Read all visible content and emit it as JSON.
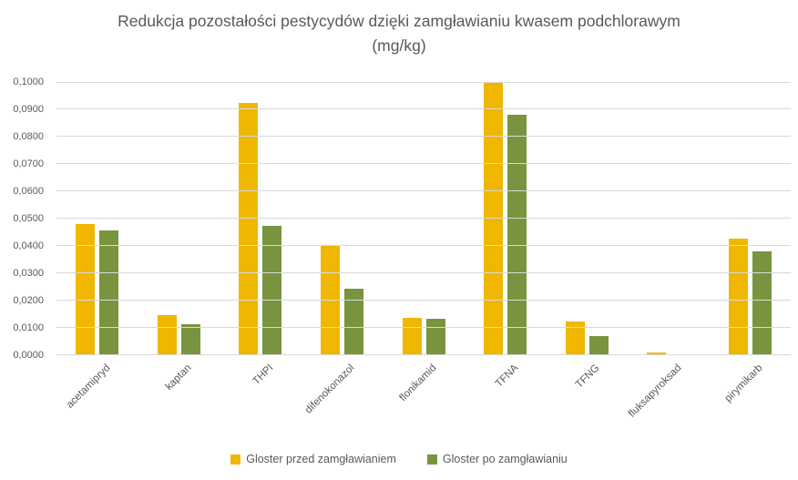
{
  "chart_data": {
    "type": "bar",
    "title": "Redukcja pozostałości pestycydów dzięki zamgławianiu kwasem podchlorawym (mg/kg)",
    "categories": [
      "acetamipryd",
      "kaptan",
      "THPI",
      "difenokonazol",
      "flonikamid",
      "TFNA",
      "TFNG",
      "fluksapyroksad",
      "pirymikarb"
    ],
    "series": [
      {
        "name": "Gloster przed zamgławianiem",
        "color": "#EFB700",
        "values": [
          0.048,
          0.0146,
          0.0923,
          0.04,
          0.0137,
          0.1,
          0.0123,
          0.001,
          0.0427
        ]
      },
      {
        "name": "Gloster po zamgławianiu",
        "color": "#79943E",
        "values": [
          0.0458,
          0.0112,
          0.0475,
          0.0245,
          0.0135,
          0.088,
          0.007,
          0.0,
          0.0381
        ]
      }
    ],
    "xlabel": "",
    "ylabel": "",
    "ylim": [
      0,
      0.1
    ],
    "ytick_step": 0.01,
    "ytick_labels": [
      "0,0000",
      "0,0100",
      "0,0200",
      "0,0300",
      "0,0400",
      "0,0500",
      "0,0600",
      "0,0700",
      "0,0800",
      "0,0900",
      "0,1000"
    ],
    "grid": true,
    "legend_position": "bottom"
  },
  "colors": {
    "gridline": "#D9D9D9",
    "text": "#595959",
    "background": "#FFFFFF"
  }
}
